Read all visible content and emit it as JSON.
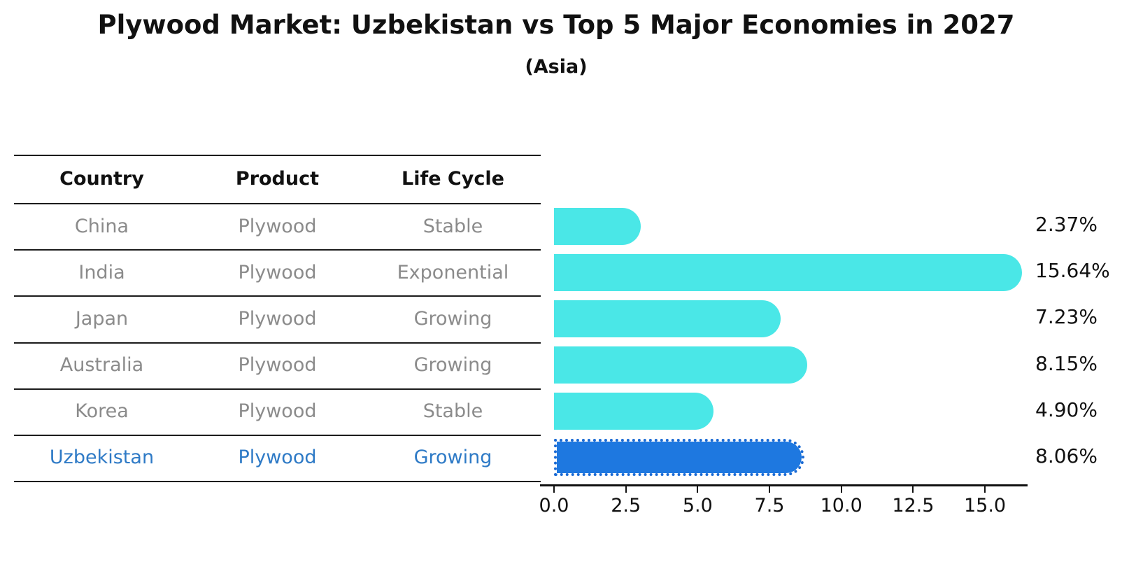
{
  "page": {
    "title": "Plywood Market: Uzbekistan vs Top 5 Major Economies in 2027",
    "subtitle": "(Asia)"
  },
  "table": {
    "headers": [
      "Country",
      "Product",
      "Life Cycle"
    ],
    "rows": [
      {
        "country": "China",
        "product": "Plywood",
        "life_cycle": "Stable",
        "highlight": false
      },
      {
        "country": "India",
        "product": "Plywood",
        "life_cycle": "Exponential",
        "highlight": false
      },
      {
        "country": "Japan",
        "product": "Plywood",
        "life_cycle": "Growing",
        "highlight": false
      },
      {
        "country": "Australia",
        "product": "Plywood",
        "life_cycle": "Growing",
        "highlight": false
      },
      {
        "country": "Korea",
        "product": "Plywood",
        "life_cycle": "Stable",
        "highlight": false
      },
      {
        "country": "Uzbekistan",
        "product": "Plywood",
        "life_cycle": "Growing",
        "highlight": true
      }
    ]
  },
  "chart_data": {
    "type": "bar",
    "orientation": "horizontal",
    "title": "Plywood Market: Uzbekistan vs Top 5 Major Economies in 2027",
    "subtitle": "(Asia)",
    "categories": [
      "China",
      "India",
      "Japan",
      "Australia",
      "Korea",
      "Uzbekistan"
    ],
    "values": [
      2.37,
      15.64,
      7.23,
      8.15,
      4.9,
      8.06
    ],
    "value_labels": [
      "2.37%",
      "15.64%",
      "7.23%",
      "8.15%",
      "4.90%",
      "8.06%"
    ],
    "x_ticks": [
      0,
      2.5,
      5,
      7.5,
      10,
      12.5,
      15
    ],
    "x_tick_labels": [
      "0.0",
      "2.5",
      "5.0",
      "7.5",
      "10.0",
      "12.5",
      "15.0"
    ],
    "xlim": [
      0,
      16.5
    ],
    "grid": false,
    "legend": "none",
    "bar_color": "#4ae7e7",
    "highlight_bar_color": "#1e78e0",
    "highlight_border_color": "#1a6ad4",
    "highlight_index": 5,
    "highlight_text_color": "#2e7ac6",
    "row_text_color": "#8b8b8b",
    "axis_color": "#111111"
  }
}
